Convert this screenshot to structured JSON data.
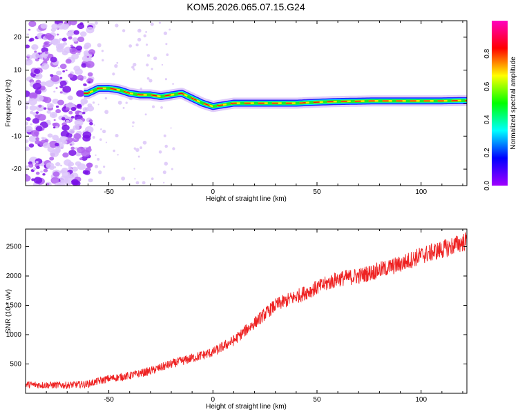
{
  "title": "KOM5.2026.065.07.15.G24",
  "chart_data": [
    {
      "type": "heatmap",
      "xlabel": "Height of straight line (km)",
      "ylabel": "Frequency (Hz)",
      "xlim": [
        -90,
        122
      ],
      "ylim": [
        -25,
        25
      ],
      "xticks": [
        -50,
        0,
        50,
        100
      ],
      "yticks": [
        -20,
        -10,
        0,
        10,
        20
      ],
      "ridge": {
        "x": [
          -60,
          -55,
          -50,
          -45,
          -40,
          -35,
          -30,
          -25,
          -20,
          -15,
          -10,
          -5,
          0,
          5,
          10,
          15,
          20,
          25,
          30,
          40,
          50,
          60,
          70,
          80,
          90,
          100,
          110,
          122
        ],
        "y": [
          3,
          4.5,
          4.5,
          4,
          3,
          2.5,
          2.5,
          2,
          2.5,
          3,
          1.5,
          0,
          -1,
          -0.5,
          0,
          0,
          0,
          0,
          0,
          0,
          0.3,
          0.5,
          0.6,
          0.7,
          0.7,
          0.7,
          0.7,
          0.8
        ]
      },
      "colorbar": {
        "label": "Normalized spectral amplitude",
        "ticks": [
          "0.0",
          "0.2",
          "0.4",
          "0.6",
          "0.8"
        ],
        "range": [
          0,
          1
        ]
      },
      "colors": [
        "#a000ff",
        "#0000ff",
        "#00ffff",
        "#00ff00",
        "#ffff00",
        "#ff0000",
        "#ff00c0"
      ]
    },
    {
      "type": "line",
      "xlabel": "Height of straight line (km)",
      "ylabel": "SNR (10 * v/v)",
      "xlim": [
        -90,
        122
      ],
      "ylim": [
        0,
        2800
      ],
      "xticks": [
        -50,
        0,
        50,
        100
      ],
      "yticks": [
        500,
        1000,
        1500,
        2000,
        2500
      ],
      "series": [
        {
          "color": "#ee2222",
          "x": [
            -90,
            -80,
            -70,
            -60,
            -50,
            -40,
            -30,
            -20,
            -10,
            0,
            10,
            20,
            30,
            40,
            50,
            60,
            70,
            80,
            90,
            100,
            110,
            122
          ],
          "y": [
            150,
            140,
            140,
            160,
            250,
            300,
            380,
            500,
            600,
            700,
            900,
            1200,
            1500,
            1650,
            1800,
            1950,
            2000,
            2100,
            2200,
            2350,
            2450,
            2600
          ],
          "noise": 110
        }
      ]
    }
  ]
}
